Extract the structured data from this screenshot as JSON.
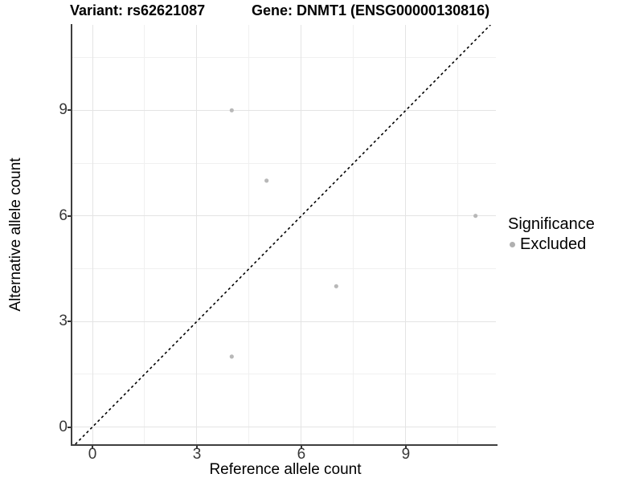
{
  "chart_data": {
    "type": "scatter",
    "title_left": "Variant: rs62621087",
    "title_right": "Gene: DNMT1 (ENSG00000130816)",
    "xlabel": "Reference allele count",
    "ylabel": "Alternative allele count",
    "x_ticks": [
      0,
      3,
      6,
      9
    ],
    "y_ticks": [
      0,
      3,
      6,
      9
    ],
    "minor_grid_offset": 1.5,
    "xlim": [
      -0.59,
      11.58
    ],
    "ylim": [
      -0.49,
      11.43
    ],
    "grid": true,
    "series": [
      {
        "name": "Excluded",
        "color": "#b8b8b8",
        "point_radius": 2.6,
        "points": [
          [
            4,
            9
          ],
          [
            5,
            7
          ],
          [
            11,
            6
          ],
          [
            7,
            4
          ],
          [
            4,
            2
          ]
        ]
      }
    ],
    "reference_line": {
      "type": "identity",
      "equation": "y = x",
      "style": "dashed",
      "color": "#000000"
    },
    "legend": {
      "title": "Significance",
      "position": "right",
      "items": [
        {
          "label": "Excluded",
          "color": "#b0b0b0"
        }
      ]
    },
    "colors": {
      "axis_line": "#3f3f3f",
      "major_grid": "#e4e4e4",
      "minor_grid": "#f0f0f0",
      "tick_label": "#383838"
    }
  }
}
